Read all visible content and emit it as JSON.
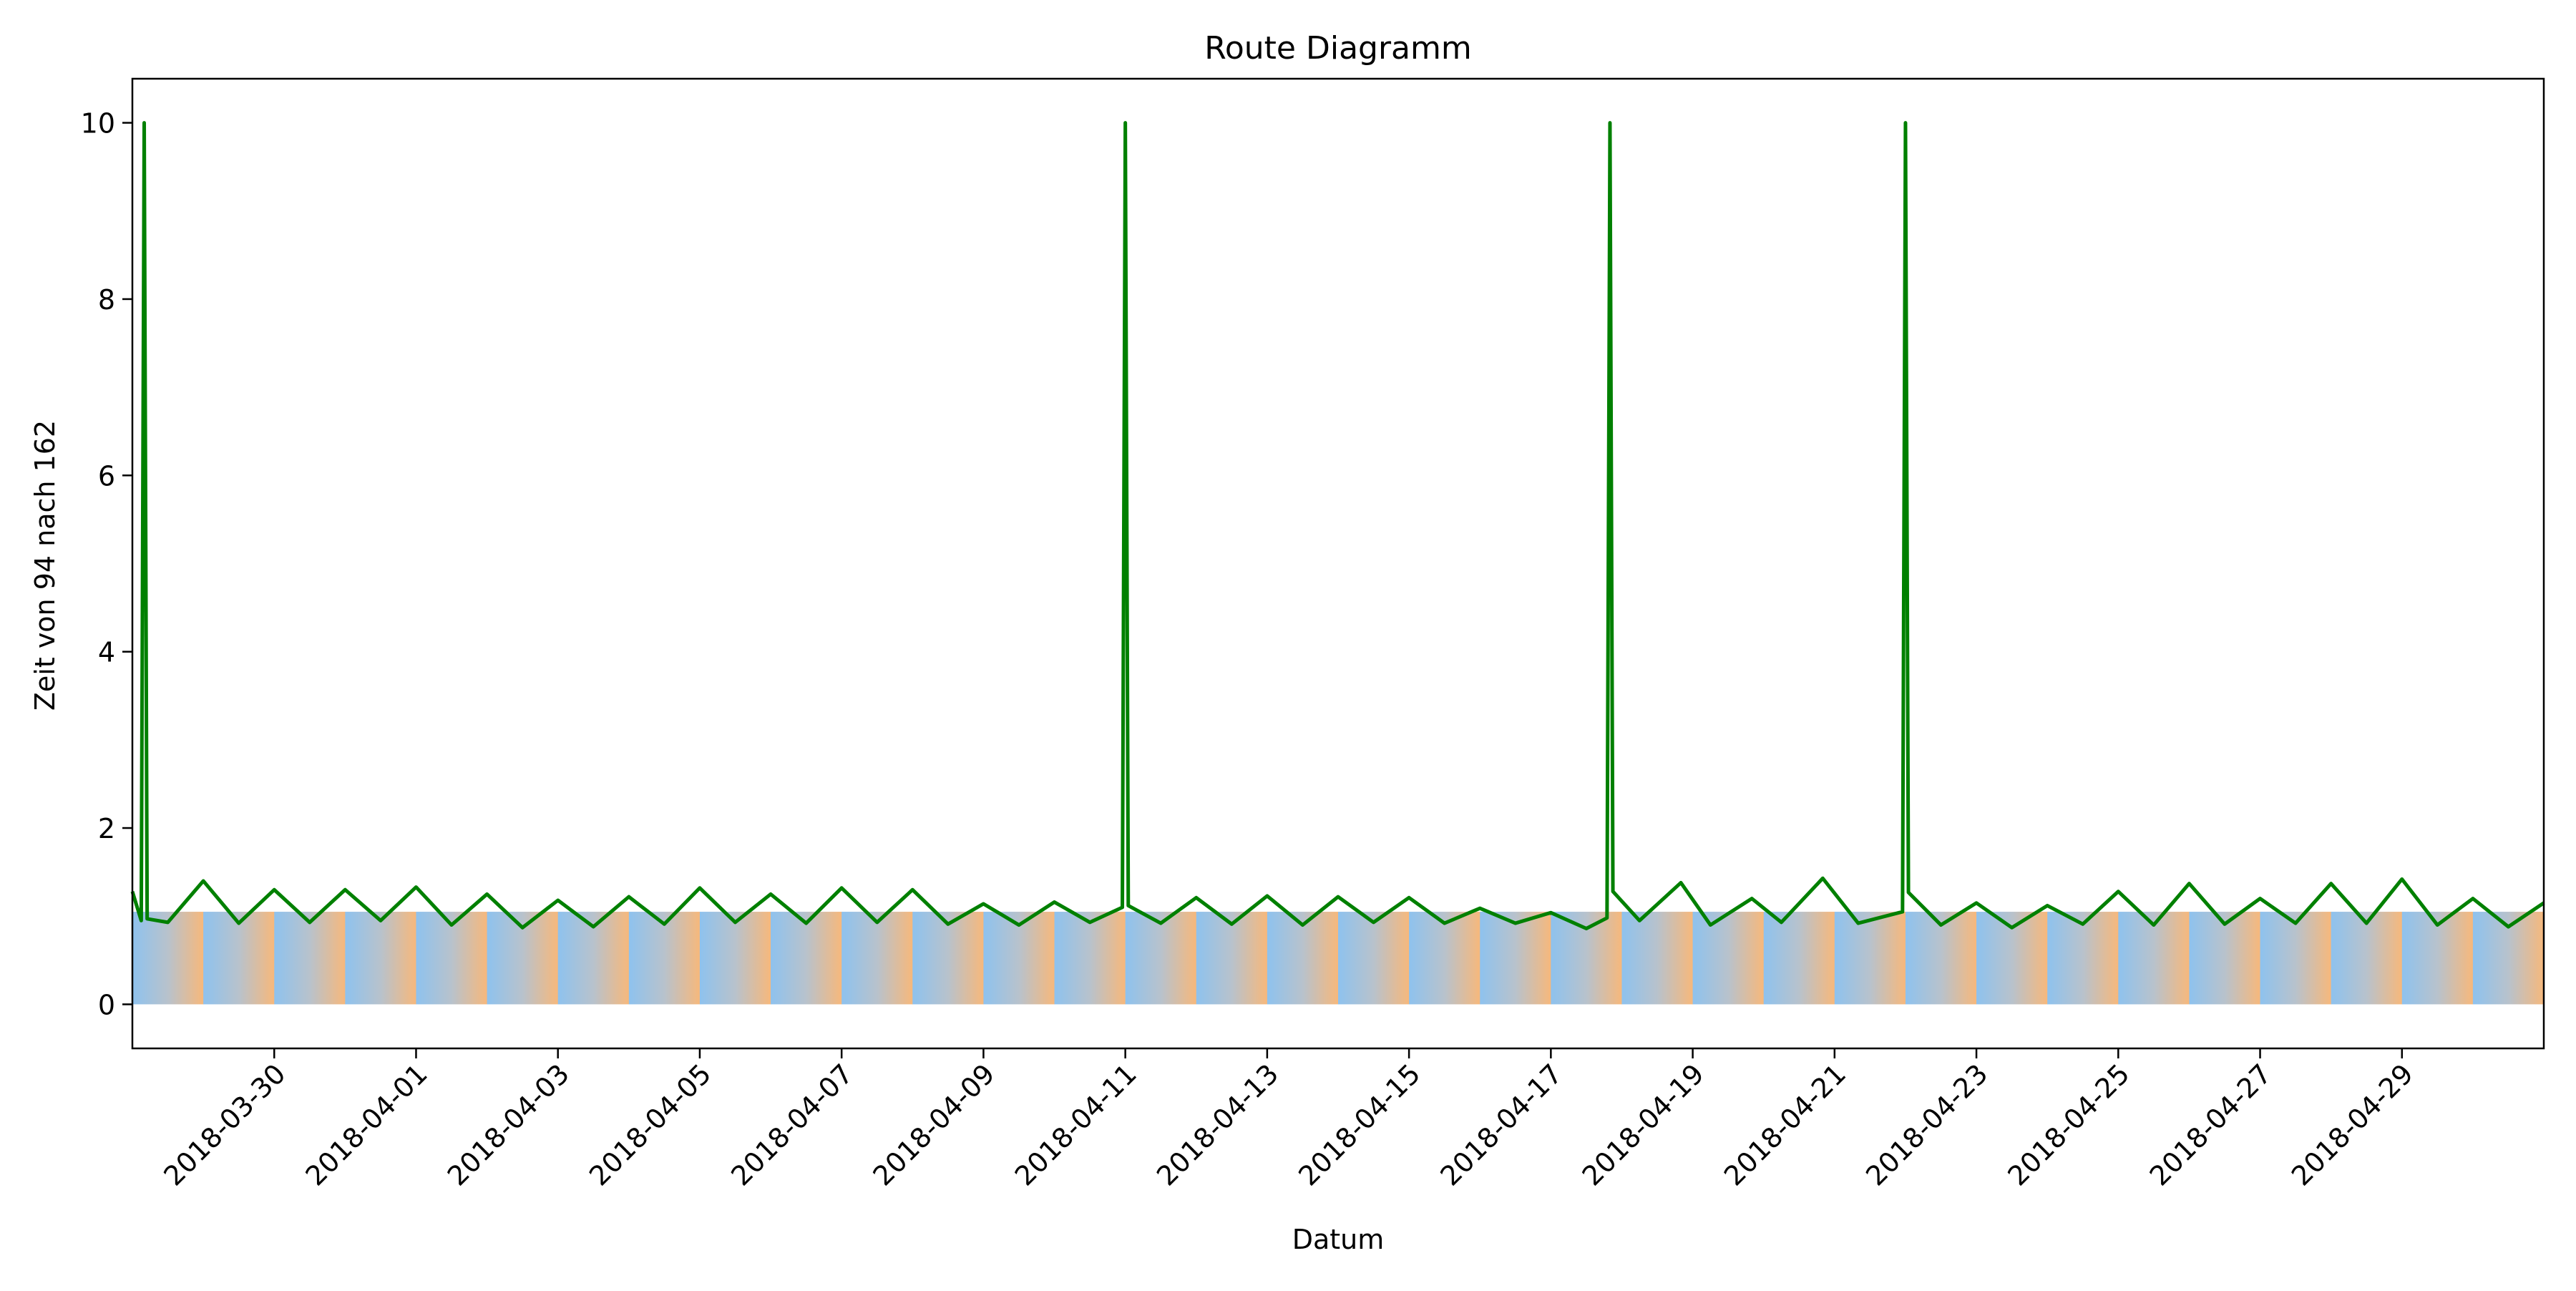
{
  "chart_data": {
    "type": "line",
    "title": "Route Diagramm",
    "xlabel": "Datum",
    "ylabel": "Zeit von 94 nach 162",
    "x_range": [
      "2018-03-28",
      "2018-05-01"
    ],
    "x_ticks": [
      "2018-03-30",
      "2018-04-01",
      "2018-04-03",
      "2018-04-05",
      "2018-04-07",
      "2018-04-09",
      "2018-04-11",
      "2018-04-13",
      "2018-04-15",
      "2018-04-17",
      "2018-04-19",
      "2018-04-21",
      "2018-04-23",
      "2018-04-25",
      "2018-04-27",
      "2018-04-29"
    ],
    "y_ticks": [
      0,
      2,
      4,
      6,
      8,
      10
    ],
    "ylim": [
      -0.5,
      10.5
    ],
    "grid": false,
    "legend": null,
    "series": [
      {
        "color": "#008000",
        "points": [
          [
            "2018-03-28 00:00",
            1.28
          ],
          [
            "2018-03-28 03:00",
            0.95
          ],
          [
            "2018-03-28 04:00",
            10.0
          ],
          [
            "2018-03-28 05:00",
            0.97
          ],
          [
            "2018-03-28 12:00",
            0.93
          ],
          [
            "2018-03-29 00:00",
            1.4
          ],
          [
            "2018-03-29 12:00",
            0.92
          ],
          [
            "2018-03-30 00:00",
            1.3
          ],
          [
            "2018-03-30 12:00",
            0.93
          ],
          [
            "2018-03-31 00:00",
            1.3
          ],
          [
            "2018-03-31 12:00",
            0.95
          ],
          [
            "2018-04-01 00:00",
            1.33
          ],
          [
            "2018-04-01 12:00",
            0.9
          ],
          [
            "2018-04-02 00:00",
            1.25
          ],
          [
            "2018-04-02 12:00",
            0.87
          ],
          [
            "2018-04-03 00:00",
            1.18
          ],
          [
            "2018-04-03 12:00",
            0.88
          ],
          [
            "2018-04-04 00:00",
            1.22
          ],
          [
            "2018-04-04 12:00",
            0.91
          ],
          [
            "2018-04-05 00:00",
            1.32
          ],
          [
            "2018-04-05 12:00",
            0.93
          ],
          [
            "2018-04-06 00:00",
            1.25
          ],
          [
            "2018-04-06 12:00",
            0.92
          ],
          [
            "2018-04-07 00:00",
            1.32
          ],
          [
            "2018-04-07 12:00",
            0.93
          ],
          [
            "2018-04-08 00:00",
            1.3
          ],
          [
            "2018-04-08 12:00",
            0.91
          ],
          [
            "2018-04-09 00:00",
            1.14
          ],
          [
            "2018-04-09 12:00",
            0.9
          ],
          [
            "2018-04-10 00:00",
            1.16
          ],
          [
            "2018-04-10 12:00",
            0.93
          ],
          [
            "2018-04-10 23:00",
            1.1
          ],
          [
            "2018-04-11 00:00",
            10.0
          ],
          [
            "2018-04-11 01:00",
            1.12
          ],
          [
            "2018-04-11 12:00",
            0.92
          ],
          [
            "2018-04-12 00:00",
            1.21
          ],
          [
            "2018-04-12 12:00",
            0.91
          ],
          [
            "2018-04-13 00:00",
            1.23
          ],
          [
            "2018-04-13 12:00",
            0.9
          ],
          [
            "2018-04-14 00:00",
            1.22
          ],
          [
            "2018-04-14 12:00",
            0.93
          ],
          [
            "2018-04-15 00:00",
            1.21
          ],
          [
            "2018-04-15 12:00",
            0.92
          ],
          [
            "2018-04-16 00:00",
            1.09
          ],
          [
            "2018-04-16 12:00",
            0.92
          ],
          [
            "2018-04-17 00:00",
            1.04
          ],
          [
            "2018-04-17 12:00",
            0.86
          ],
          [
            "2018-04-17 19:00",
            0.98
          ],
          [
            "2018-04-17 20:00",
            10.0
          ],
          [
            "2018-04-17 21:00",
            1.28
          ],
          [
            "2018-04-18 06:00",
            0.95
          ],
          [
            "2018-04-18 20:00",
            1.38
          ],
          [
            "2018-04-19 06:00",
            0.9
          ],
          [
            "2018-04-19 20:00",
            1.2
          ],
          [
            "2018-04-20 06:00",
            0.93
          ],
          [
            "2018-04-20 20:00",
            1.43
          ],
          [
            "2018-04-21 08:00",
            0.92
          ],
          [
            "2018-04-21 23:00",
            1.05
          ],
          [
            "2018-04-22 00:00",
            10.0
          ],
          [
            "2018-04-22 01:00",
            1.27
          ],
          [
            "2018-04-22 12:00",
            0.9
          ],
          [
            "2018-04-23 00:00",
            1.15
          ],
          [
            "2018-04-23 12:00",
            0.87
          ],
          [
            "2018-04-24 00:00",
            1.12
          ],
          [
            "2018-04-24 12:00",
            0.91
          ],
          [
            "2018-04-25 00:00",
            1.28
          ],
          [
            "2018-04-25 12:00",
            0.9
          ],
          [
            "2018-04-26 00:00",
            1.37
          ],
          [
            "2018-04-26 12:00",
            0.91
          ],
          [
            "2018-04-27 00:00",
            1.2
          ],
          [
            "2018-04-27 12:00",
            0.92
          ],
          [
            "2018-04-28 00:00",
            1.37
          ],
          [
            "2018-04-28 12:00",
            0.92
          ],
          [
            "2018-04-29 00:00",
            1.42
          ],
          [
            "2018-04-29 12:00",
            0.9
          ],
          [
            "2018-04-30 00:00",
            1.2
          ],
          [
            "2018-04-30 12:00",
            0.88
          ],
          [
            "2018-05-01 00:00",
            1.15
          ]
        ]
      }
    ],
    "background_bands": {
      "colors": [
        "#8ec2ee",
        "#f7b87b"
      ],
      "y_range": [
        0,
        1.05
      ],
      "description_of_pattern": "daily gradient blue to orange"
    }
  }
}
